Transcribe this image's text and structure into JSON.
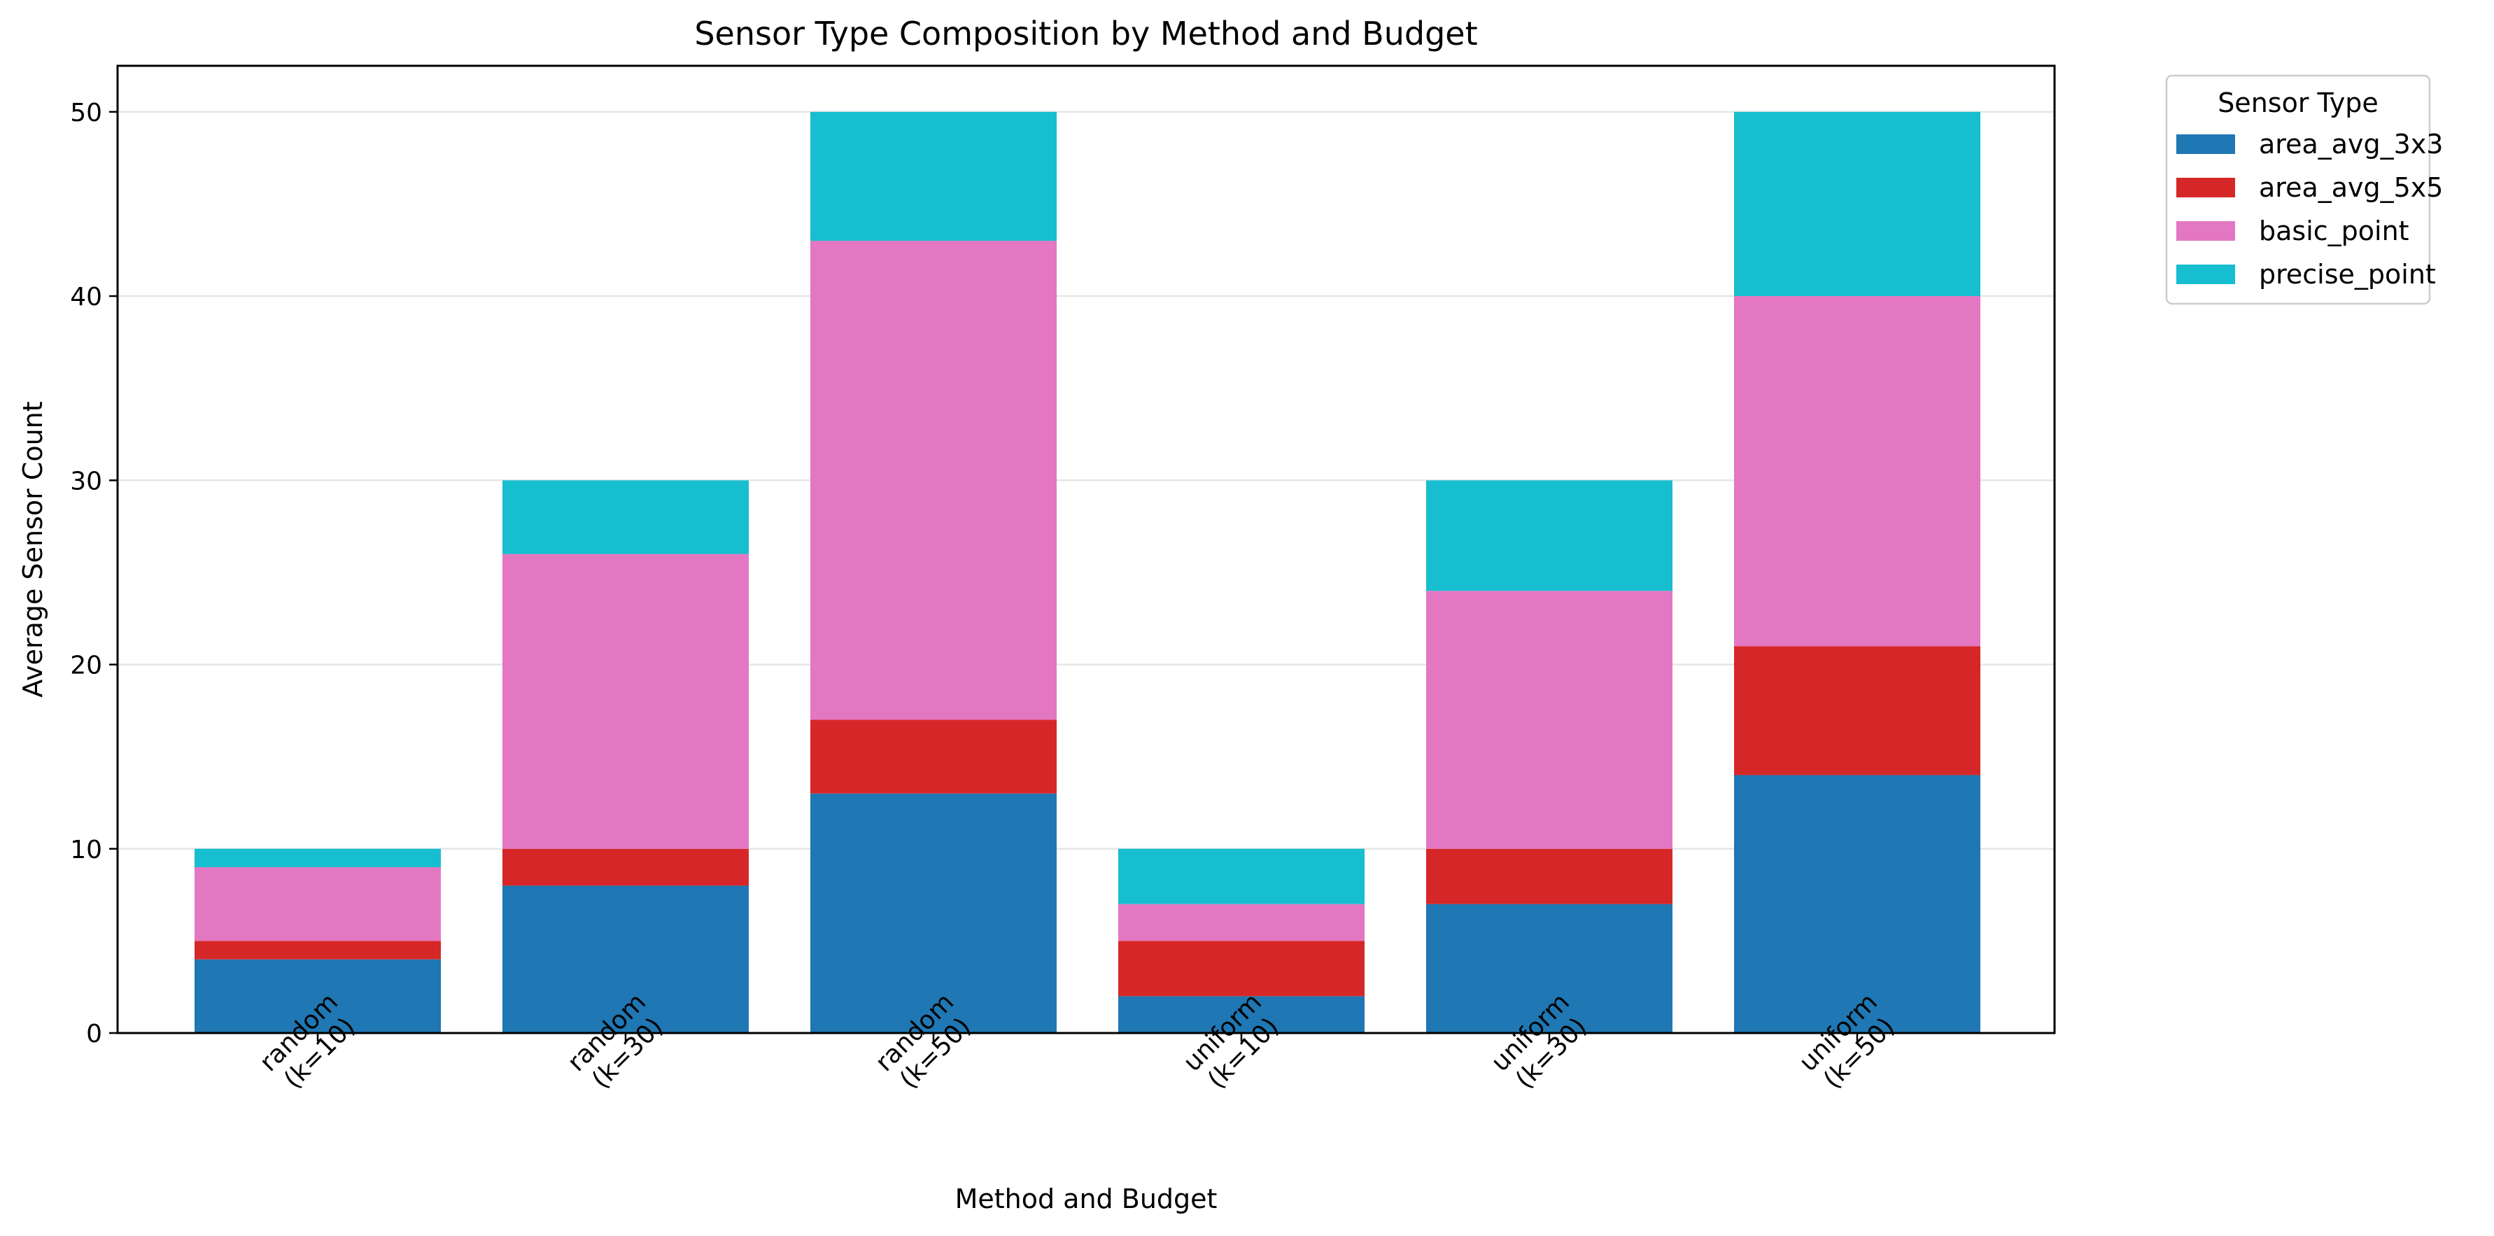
{
  "chart_data": {
    "type": "bar",
    "stacked": true,
    "title": "Sensor Type Composition by Method and Budget",
    "xlabel": "Method and Budget",
    "ylabel": "Average Sensor Count",
    "categories": [
      [
        "random",
        "(k=10)"
      ],
      [
        "random",
        "(k=30)"
      ],
      [
        "random",
        "(k=50)"
      ],
      [
        "uniform",
        "(k=10)"
      ],
      [
        "uniform",
        "(k=30)"
      ],
      [
        "uniform",
        "(k=50)"
      ]
    ],
    "series": [
      {
        "name": "area_avg_3x3",
        "color": "#1f77b4",
        "values": [
          4,
          8,
          13,
          2,
          7,
          14
        ]
      },
      {
        "name": "area_avg_5x5",
        "color": "#d62728",
        "values": [
          1,
          2,
          4,
          3,
          3,
          7
        ]
      },
      {
        "name": "basic_point",
        "color": "#e377c2",
        "values": [
          4,
          16,
          26,
          2,
          14,
          19
        ]
      },
      {
        "name": "precise_point",
        "color": "#17becf",
        "values": [
          1,
          4,
          7,
          3,
          6,
          10
        ]
      }
    ],
    "ylim": [
      0,
      52.5
    ],
    "yticks": [
      0,
      10,
      20,
      30,
      40,
      50
    ],
    "grid": "y",
    "legend": {
      "title": "Sensor Type",
      "placement": "outside upper right"
    }
  }
}
